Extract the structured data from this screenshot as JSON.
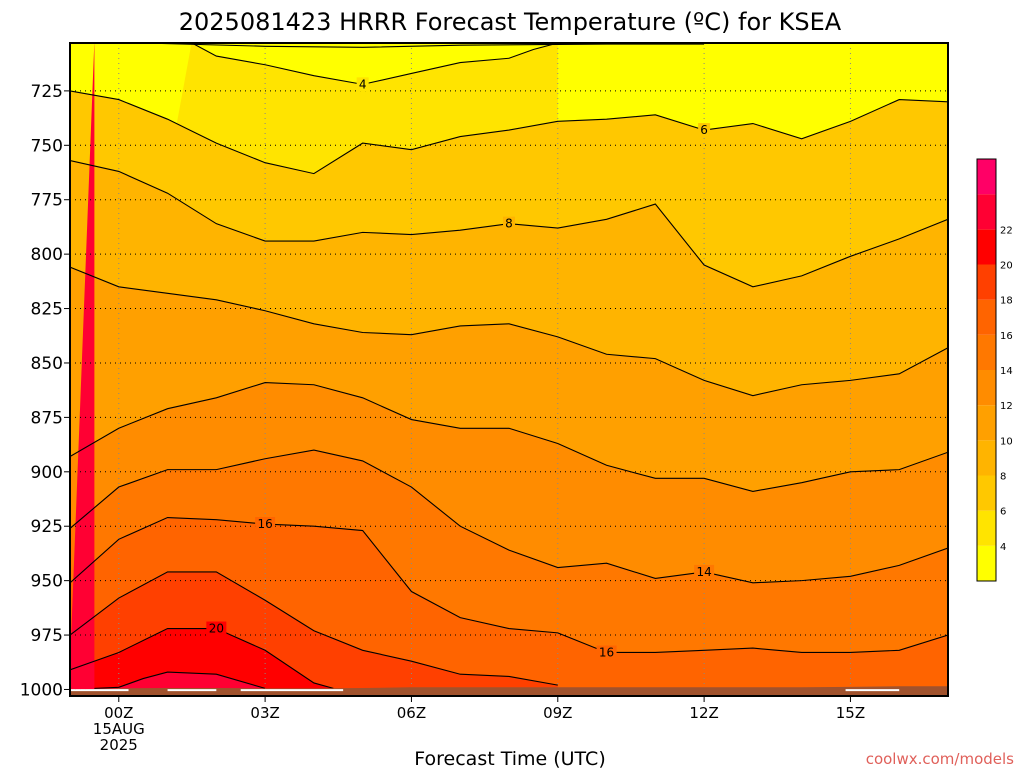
{
  "chart_data": {
    "type": "heatmap",
    "title": "2025081423 HRRR Forecast Temperature (ºC) for KSEA",
    "xlabel": "Forecast Time (UTC)",
    "ylabel": "",
    "credit": "coolwx.com/models",
    "x_range": [
      -1,
      17
    ],
    "y_range": [
      1003,
      703
    ],
    "y_scale": "linear-pressure",
    "y_ticks": [
      {
        "value": 725,
        "label": "725"
      },
      {
        "value": 750,
        "label": "750"
      },
      {
        "value": 775,
        "label": "775"
      },
      {
        "value": 800,
        "label": "800"
      },
      {
        "value": 825,
        "label": "825"
      },
      {
        "value": 850,
        "label": "850"
      },
      {
        "value": 875,
        "label": "875"
      },
      {
        "value": 900,
        "label": "900"
      },
      {
        "value": 925,
        "label": "925"
      },
      {
        "value": 950,
        "label": "950"
      },
      {
        "value": 975,
        "label": "975"
      },
      {
        "value": 1000,
        "label": "1000"
      }
    ],
    "x_ticks": [
      {
        "value": 0,
        "label": "00Z",
        "sub": [
          "15AUG",
          "2025"
        ]
      },
      {
        "value": 3,
        "label": "03Z",
        "sub": []
      },
      {
        "value": 6,
        "label": "06Z",
        "sub": []
      },
      {
        "value": 9,
        "label": "09Z",
        "sub": []
      },
      {
        "value": 12,
        "label": "12Z",
        "sub": []
      },
      {
        "value": 15,
        "label": "15Z",
        "sub": []
      }
    ],
    "grid": "dotted",
    "legend": "right colorbar",
    "colorbar": {
      "bins": [
        2,
        4,
        6,
        8,
        10,
        12,
        14,
        16,
        18,
        20,
        22,
        24
      ],
      "colors": [
        "#ffff00",
        "#ffe400",
        "#ffc800",
        "#ffb400",
        "#ffa000",
        "#ff8c00",
        "#ff7800",
        "#ff6400",
        "#ff4000",
        "#ff0000",
        "#ff0033",
        "#ff0066"
      ],
      "tick_labels": [
        "4",
        "6",
        "8",
        "10",
        "12",
        "14",
        "16",
        "18",
        "20",
        "22"
      ]
    },
    "surface_pressure": [
      {
        "x": -1,
        "p": 1000
      },
      {
        "x": 0,
        "p": 999.5
      },
      {
        "x": 1,
        "p": 999.3
      },
      {
        "x": 2,
        "p": 999.3
      },
      {
        "x": 3,
        "p": 999.5
      },
      {
        "x": 4,
        "p": 999.5
      },
      {
        "x": 5,
        "p": 999.3
      },
      {
        "x": 6,
        "p": 999
      },
      {
        "x": 7,
        "p": 999
      },
      {
        "x": 8,
        "p": 999
      },
      {
        "x": 9,
        "p": 999
      },
      {
        "x": 10,
        "p": 999
      },
      {
        "x": 11,
        "p": 999
      },
      {
        "x": 12,
        "p": 999
      },
      {
        "x": 13,
        "p": 999
      },
      {
        "x": 14,
        "p": 999
      },
      {
        "x": 15,
        "p": 998.8
      },
      {
        "x": 16,
        "p": 998.5
      },
      {
        "x": 17,
        "p": 998.5
      }
    ],
    "contours": [
      {
        "temp": 2,
        "label": "",
        "points": [
          [
            0.5,
            703
          ],
          [
            3,
            704.5
          ],
          [
            5,
            705
          ],
          [
            7,
            704
          ],
          [
            10,
            703.5
          ],
          [
            12,
            703.5
          ]
        ]
      },
      {
        "temp": 4,
        "label": "4",
        "points": [
          [
            1.5,
            703
          ],
          [
            2,
            709
          ],
          [
            3,
            713
          ],
          [
            4,
            718
          ],
          [
            5,
            722
          ],
          [
            6,
            717
          ],
          [
            7,
            712
          ],
          [
            8,
            710
          ],
          [
            8.5,
            706
          ],
          [
            9,
            703
          ]
        ]
      },
      {
        "temp": 6,
        "label": "6",
        "points": [
          [
            -1,
            725
          ],
          [
            0,
            729
          ],
          [
            1,
            738
          ],
          [
            2,
            749
          ],
          [
            3,
            758
          ],
          [
            4,
            763
          ],
          [
            5,
            749
          ],
          [
            6,
            752
          ],
          [
            7,
            746
          ],
          [
            8,
            743
          ],
          [
            9,
            739
          ],
          [
            10,
            738
          ],
          [
            11,
            736
          ],
          [
            12,
            743
          ],
          [
            13,
            740
          ],
          [
            14,
            747
          ],
          [
            15,
            739
          ],
          [
            16,
            729
          ],
          [
            17,
            730
          ]
        ]
      },
      {
        "temp": 8,
        "label": "8",
        "points": [
          [
            -1,
            757
          ],
          [
            0,
            762
          ],
          [
            1,
            772
          ],
          [
            2,
            786
          ],
          [
            3,
            794
          ],
          [
            4,
            794
          ],
          [
            5,
            790
          ],
          [
            6,
            791
          ],
          [
            7,
            789
          ],
          [
            8,
            786
          ],
          [
            9,
            788
          ],
          [
            10,
            784
          ],
          [
            11,
            777
          ],
          [
            12,
            805
          ],
          [
            13,
            815
          ],
          [
            14,
            810
          ],
          [
            15,
            801
          ],
          [
            16,
            793
          ],
          [
            17,
            784
          ]
        ]
      },
      {
        "temp": 10,
        "label": "",
        "points": [
          [
            -1,
            806
          ],
          [
            0,
            815
          ],
          [
            1,
            818
          ],
          [
            2,
            821
          ],
          [
            3,
            826
          ],
          [
            4,
            832
          ],
          [
            5,
            836
          ],
          [
            6,
            837
          ],
          [
            7,
            833
          ],
          [
            8,
            832
          ],
          [
            9,
            838
          ],
          [
            10,
            846
          ],
          [
            11,
            848
          ],
          [
            12,
            858
          ],
          [
            13,
            865
          ],
          [
            14,
            860
          ],
          [
            15,
            858
          ],
          [
            16,
            855
          ],
          [
            17,
            843
          ]
        ]
      },
      {
        "temp": 12,
        "label": "",
        "points": [
          [
            -1,
            893
          ],
          [
            0,
            880
          ],
          [
            1,
            871
          ],
          [
            2,
            866
          ],
          [
            3,
            859
          ],
          [
            4,
            860
          ],
          [
            5,
            866
          ],
          [
            6,
            876
          ],
          [
            7,
            880
          ],
          [
            8,
            880
          ],
          [
            9,
            887
          ],
          [
            10,
            897
          ],
          [
            11,
            903
          ],
          [
            12,
            903
          ],
          [
            13,
            909
          ],
          [
            14,
            905
          ],
          [
            15,
            900
          ],
          [
            16,
            899
          ],
          [
            17,
            891
          ]
        ]
      },
      {
        "temp": 14,
        "label": "14",
        "points": [
          [
            -1,
            926
          ],
          [
            0,
            907
          ],
          [
            1,
            899
          ],
          [
            2,
            899
          ],
          [
            3,
            894
          ],
          [
            4,
            890
          ],
          [
            5,
            895
          ],
          [
            6,
            907
          ],
          [
            7,
            925
          ],
          [
            8,
            936
          ],
          [
            9,
            944
          ],
          [
            10,
            942
          ],
          [
            11,
            949
          ],
          [
            12,
            946
          ],
          [
            13,
            951
          ],
          [
            14,
            950
          ],
          [
            15,
            948
          ],
          [
            16,
            943
          ],
          [
            17,
            935
          ]
        ]
      },
      {
        "temp": 16,
        "label": "16",
        "points": [
          [
            -1,
            951
          ],
          [
            0,
            931
          ],
          [
            1,
            921
          ],
          [
            2,
            922
          ],
          [
            3,
            924
          ],
          [
            4,
            925
          ],
          [
            5,
            927
          ],
          [
            6,
            955
          ],
          [
            7,
            967
          ],
          [
            8,
            972
          ],
          [
            9,
            974
          ],
          [
            10,
            983
          ],
          [
            11,
            983
          ],
          [
            12,
            982
          ],
          [
            13,
            981
          ],
          [
            14,
            983
          ],
          [
            15,
            983
          ],
          [
            16,
            982
          ],
          [
            17,
            975
          ]
        ]
      },
      {
        "temp": 18,
        "label": "",
        "points": [
          [
            -1,
            975
          ],
          [
            0,
            958
          ],
          [
            1,
            946
          ],
          [
            2,
            946
          ],
          [
            3,
            959
          ],
          [
            4,
            973
          ],
          [
            5,
            982
          ],
          [
            6,
            987
          ],
          [
            7,
            993
          ],
          [
            8,
            994
          ],
          [
            9,
            998
          ]
        ]
      },
      {
        "temp": 20,
        "label": "20",
        "points": [
          [
            -1,
            991
          ],
          [
            0,
            983
          ],
          [
            1,
            972
          ],
          [
            2,
            972
          ],
          [
            3,
            982
          ],
          [
            4,
            997
          ],
          [
            4.4,
            999.5
          ]
        ]
      },
      {
        "temp": 22,
        "label": "",
        "points": [
          [
            -0.5,
            999.5
          ],
          [
            0,
            999
          ],
          [
            0.5,
            995
          ],
          [
            1,
            992
          ],
          [
            2,
            993
          ],
          [
            3,
            999.5
          ]
        ]
      }
    ],
    "contour_labels": [
      {
        "text": "4",
        "x": 5,
        "temp": 4
      },
      {
        "text": "6",
        "x": 12,
        "temp": 6
      },
      {
        "text": "8",
        "x": 8,
        "temp": 8
      },
      {
        "text": "14",
        "x": 12,
        "temp": 14
      },
      {
        "text": "16",
        "x": 3,
        "temp": 16
      },
      {
        "text": "16",
        "x": 10,
        "temp": 16
      },
      {
        "text": "20",
        "x": 2,
        "temp": 20
      }
    ]
  }
}
